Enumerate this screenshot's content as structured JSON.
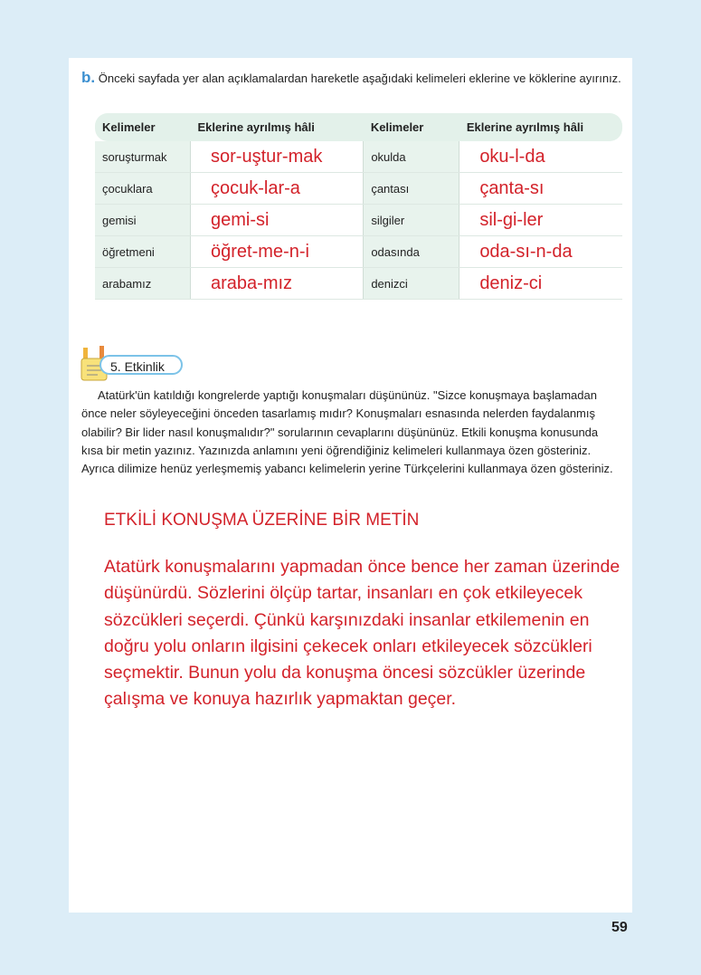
{
  "instruction": {
    "letter": "b.",
    "text": "Önceki sayfada yer alan açıklamalardan hareketle aşağıdaki kelimeleri eklerine ve köklerine ayırınız."
  },
  "table": {
    "headers": [
      "Kelimeler",
      "Eklerine ayrılmış hâli",
      "Kelimeler",
      "Eklerine ayrılmış hâli"
    ],
    "rows": [
      [
        "soruşturmak",
        "sor-uştur-mak",
        "okulda",
        "oku-l-da"
      ],
      [
        "çocuklara",
        "çocuk-lar-a",
        "çantası",
        "çanta-sı"
      ],
      [
        "gemisi",
        "gemi-si",
        "silgiler",
        "sil-gi-ler"
      ],
      [
        "öğretmeni",
        "öğret-me-n-i",
        "odasında",
        "oda-sı-n-da"
      ],
      [
        "arabamız",
        "araba-mız",
        "denizci",
        "deniz-ci"
      ]
    ]
  },
  "activity": {
    "label": "5. Etkinlik",
    "icon": "pencil-notepad-icon"
  },
  "paragraph": "Atatürk'ün katıldığı kongrelerde yaptığı konuşmaları düşününüz. \"Sizce konuşmaya başlamadan önce neler söyleyeceğini önceden tasarlamış mıdır? Konuşmaları esnasında nelerden faydalanmış olabilir? Bir lider nasıl konuşmalıdır?\" sorularının cevaplarını düşününüz. Etkili konuşma konusunda kısa bir metin yazınız. Yazınızda anlamını yeni öğrendiğiniz kelimeleri kullanmaya özen gösteriniz. Ayrıca dilimize henüz yerleşmemiş yabancı kelimelerin yerine Türkçelerini kullanmaya özen gösteriniz.",
  "essay": {
    "title": "ETKİLİ KONUŞMA ÜZERİNE BİR METİN",
    "text": "Atatürk konuşmalarını yapmadan önce bence her zaman üzerinde düşünürdü. Sözlerini ölçüp tartar, insanları en çok etkileyecek sözcükleri seçerdi. Çünkü karşınızdaki insanlar etkilemenin en doğru yolu onların ilgisini çekecek onları etkileyecek sözcükleri seçmektir. Bunun yolu da konuşma öncesi sözcükler üzerinde çalışma ve konuya hazırlık yapmaktan geçer."
  },
  "page_number": "59",
  "colors": {
    "handwriting": "#d3222a",
    "table_tint": "#e3f1ea",
    "background": "#dcedf7"
  }
}
